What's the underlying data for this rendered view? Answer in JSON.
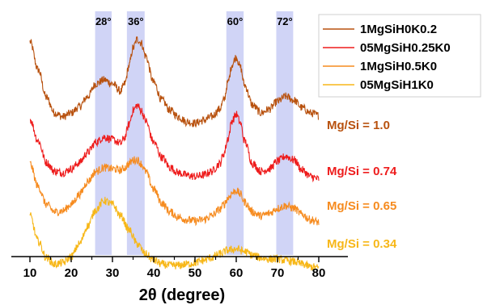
{
  "chart_data": {
    "type": "line",
    "title": "",
    "xlabel": "2θ (degree)",
    "ylabel": "",
    "xlim": [
      10,
      80
    ],
    "xticks": [
      "10",
      "20",
      "30",
      "40",
      "50",
      "60",
      "70",
      "80"
    ],
    "grid": false,
    "y_axis_shown": false,
    "legend_position": "top-right",
    "highlight_bands": [
      {
        "label": "28°",
        "range": [
          25.8,
          29.8
        ]
      },
      {
        "label": "36°",
        "range": [
          33.5,
          37.8
        ]
      },
      {
        "label": "60°",
        "range": [
          57.6,
          61.8
        ]
      },
      {
        "label": "72°",
        "range": [
          69.7,
          73.8
        ]
      }
    ],
    "band_color": "#c8ccf4",
    "series": [
      {
        "name": "1MgSiH0K0.2",
        "annotation": "Mg/Si = 1.0",
        "color": "#b8510e",
        "x": [
          10,
          12,
          14,
          16,
          18,
          20,
          22,
          24,
          26,
          28,
          30,
          32,
          33,
          34,
          35,
          36,
          37,
          38,
          40,
          42,
          44,
          46,
          48,
          50,
          52,
          54,
          56,
          57,
          58,
          59,
          60,
          61,
          62,
          64,
          66,
          68,
          70,
          72,
          74,
          76,
          78,
          80
        ],
        "y": [
          9.15,
          8.05,
          6.95,
          6.35,
          6.2,
          6.35,
          6.6,
          7.0,
          7.5,
          7.65,
          7.5,
          7.2,
          7.5,
          8.2,
          8.9,
          9.25,
          9.1,
          8.6,
          7.55,
          6.85,
          6.45,
          6.2,
          6.0,
          5.95,
          6.05,
          6.2,
          6.5,
          6.85,
          7.55,
          8.25,
          8.55,
          8.15,
          7.45,
          6.65,
          6.35,
          6.5,
          6.8,
          7.0,
          6.85,
          6.55,
          6.35,
          6.25
        ]
      },
      {
        "name": "05MgSiH0.25K0",
        "annotation": "Mg/Si = 0.74",
        "color": "#ee1c1c",
        "x": [
          10,
          12,
          14,
          16,
          18,
          20,
          22,
          24,
          26,
          28,
          30,
          32,
          33,
          34,
          35,
          36,
          37,
          38,
          40,
          42,
          44,
          46,
          48,
          50,
          52,
          54,
          56,
          57,
          58,
          59,
          60,
          61,
          62,
          64,
          66,
          68,
          70,
          72,
          74,
          76,
          78,
          80
        ],
        "y": [
          6.1,
          5.25,
          4.4,
          4.05,
          4.0,
          4.15,
          4.4,
          4.8,
          5.2,
          5.4,
          5.3,
          5.15,
          5.4,
          5.9,
          6.45,
          6.65,
          6.45,
          6.05,
          5.2,
          4.6,
          4.2,
          4.0,
          3.9,
          3.85,
          3.9,
          4.05,
          4.35,
          4.75,
          5.35,
          6.05,
          6.3,
          5.95,
          5.25,
          4.35,
          4.05,
          4.15,
          4.45,
          4.65,
          4.5,
          4.1,
          3.85,
          3.75
        ]
      },
      {
        "name": "1MgSiH0.5K0",
        "annotation": "Mg/Si = 0.65",
        "color": "#f68b1f",
        "x": [
          10,
          12,
          14,
          16,
          18,
          20,
          22,
          24,
          26,
          28,
          30,
          32,
          33,
          34,
          35,
          36,
          37,
          38,
          40,
          42,
          44,
          46,
          48,
          50,
          52,
          54,
          56,
          57,
          58,
          59,
          60,
          61,
          62,
          64,
          66,
          68,
          70,
          72,
          74,
          76,
          78,
          80
        ],
        "y": [
          4.35,
          3.45,
          2.75,
          2.45,
          2.5,
          2.75,
          3.15,
          3.65,
          4.05,
          4.2,
          4.15,
          4.1,
          4.2,
          4.35,
          4.5,
          4.5,
          4.35,
          4.05,
          3.35,
          2.8,
          2.45,
          2.25,
          2.15,
          2.1,
          2.15,
          2.3,
          2.55,
          2.75,
          3.0,
          3.2,
          3.3,
          3.15,
          2.85,
          2.45,
          2.3,
          2.4,
          2.6,
          2.7,
          2.6,
          2.35,
          2.15,
          2.05
        ]
      },
      {
        "name": "05MgSiH1K0",
        "annotation": "Mg/Si = 0.34",
        "color": "#f7b718",
        "x": [
          10,
          12,
          14,
          16,
          18,
          20,
          22,
          24,
          26,
          28,
          30,
          32,
          34,
          36,
          38,
          40,
          42,
          44,
          46,
          48,
          50,
          52,
          54,
          56,
          58,
          60,
          62,
          64,
          66,
          68,
          70,
          72,
          74,
          76,
          78,
          80
        ],
        "y": [
          2.3,
          1.3,
          0.65,
          0.4,
          0.45,
          0.7,
          1.2,
          1.9,
          2.55,
          2.9,
          2.75,
          2.3,
          1.75,
          1.2,
          0.8,
          0.55,
          0.4,
          0.35,
          0.35,
          0.4,
          0.45,
          0.55,
          0.65,
          0.8,
          0.95,
          1.0,
          0.9,
          0.75,
          0.65,
          0.6,
          0.6,
          0.55,
          0.5,
          0.4,
          0.3,
          0.25
        ]
      }
    ]
  }
}
